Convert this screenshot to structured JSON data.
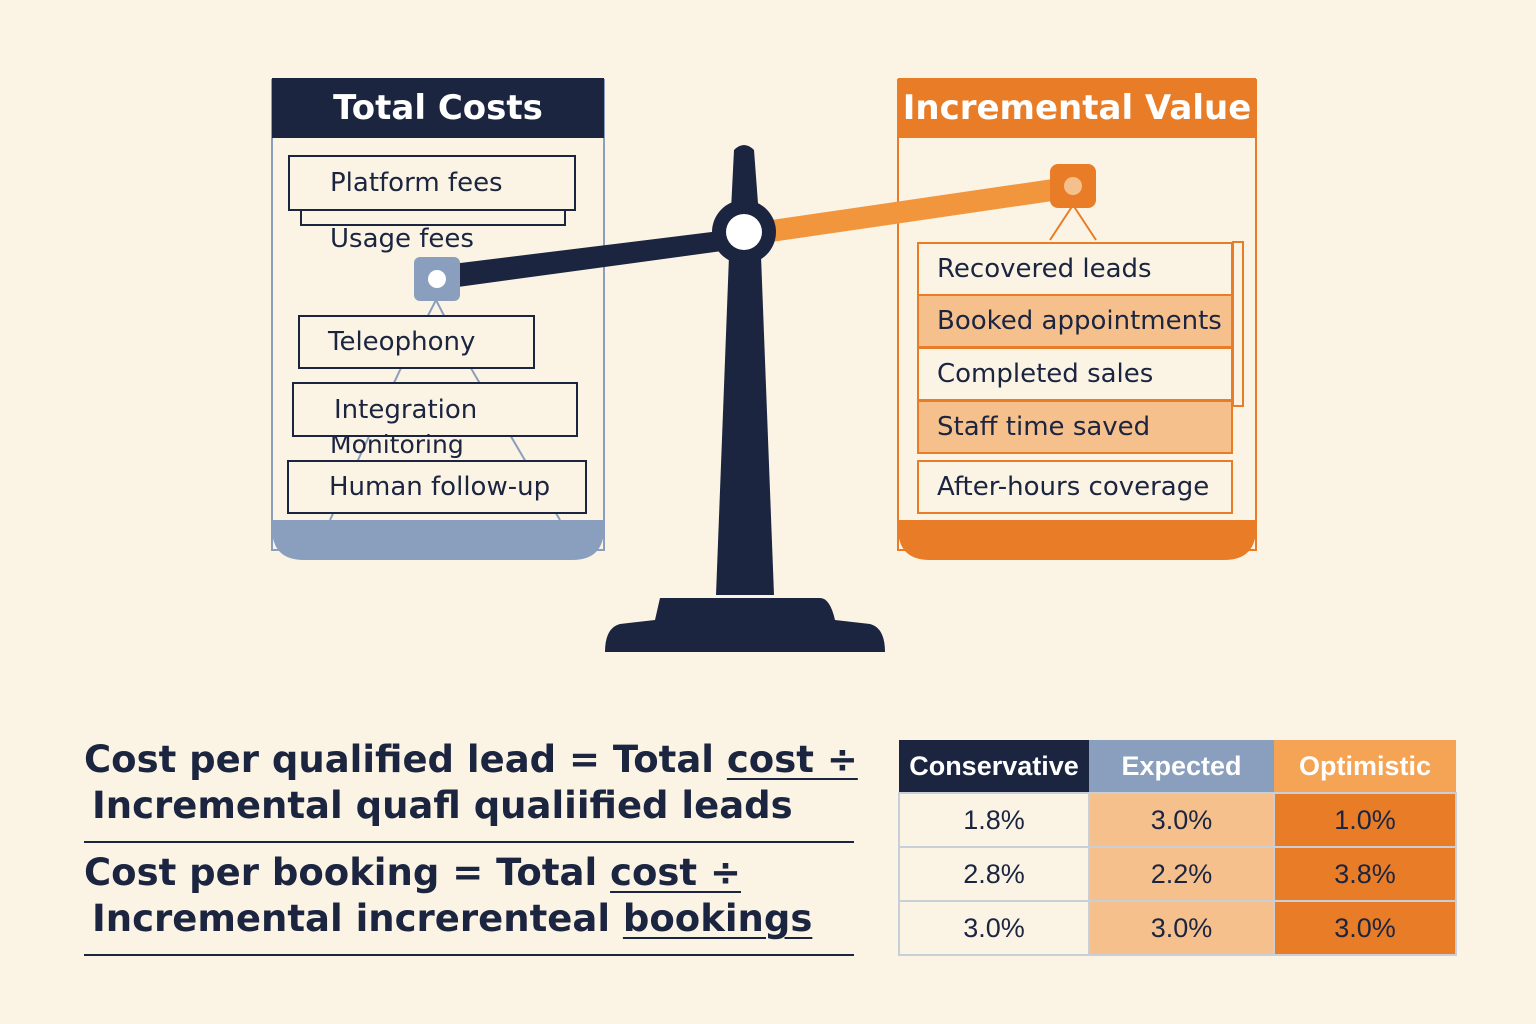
{
  "left_panel": {
    "title": "Total Costs",
    "items": [
      "Platform fees",
      "Usage fees",
      "Teleophony",
      "Integration",
      "Monitoring",
      "Human follow-up"
    ]
  },
  "right_panel": {
    "title": "Incremental Value",
    "items": [
      "Recovered leads",
      "Booked appointments",
      "Completed sales",
      "Staff time saved",
      "After-hours coverage"
    ]
  },
  "formulas": {
    "f1_line1_a": "Cost per qualified lead = Total ",
    "f1_line1_b": "cost ÷",
    "f1_line2": "Incremental quafl qualiified leads",
    "f2_line1_a": "Cost per booking = Total ",
    "f2_line1_b": "cost ÷",
    "f2_line2_a": "Incremental increrenteal ",
    "f2_line2_b": "bookings"
  },
  "table": {
    "headers": [
      "Conservative",
      "Expected",
      "Optimistic"
    ],
    "rows": [
      [
        "1.8%",
        "3.0%",
        "1.0%"
      ],
      [
        "2.8%",
        "2.2%",
        "3.8%"
      ],
      [
        "3.0%",
        "3.0%",
        "3.0%"
      ]
    ]
  },
  "colors": {
    "navy": "#1B2540",
    "orange": "#E97C26",
    "light_orange": "#F6C08D",
    "slate_blue": "#8A9FBD",
    "background": "#FBF3E4"
  },
  "icons": {
    "scale": "balance-scale-icon",
    "pivot": "pivot-circle-icon"
  }
}
